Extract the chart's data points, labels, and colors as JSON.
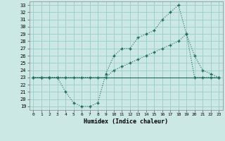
{
  "xlabel": "Humidex (Indice chaleur)",
  "background_color": "#cce8e4",
  "grid_color": "#99cccc",
  "line_color": "#1a6b5a",
  "xlim": [
    -0.5,
    23.5
  ],
  "ylim": [
    18.5,
    33.5
  ],
  "yticks": [
    19,
    20,
    21,
    22,
    23,
    24,
    25,
    26,
    27,
    28,
    29,
    30,
    31,
    32,
    33
  ],
  "xticks": [
    0,
    1,
    2,
    3,
    4,
    5,
    6,
    7,
    8,
    9,
    10,
    11,
    12,
    13,
    14,
    15,
    16,
    17,
    18,
    19,
    20,
    21,
    22,
    23
  ],
  "line1_x": [
    0,
    1,
    2,
    3,
    4,
    5,
    6,
    7,
    8,
    9,
    10,
    11,
    12,
    13,
    14,
    15,
    16,
    17,
    18,
    19,
    20,
    21,
    22,
    23
  ],
  "line1_y": [
    23,
    23,
    23,
    23,
    21,
    19.5,
    19,
    19,
    19.5,
    23.5,
    26,
    27,
    27,
    28.5,
    29,
    29.5,
    31,
    32,
    33,
    29,
    23,
    23,
    23,
    23
  ],
  "line2_x": [
    0,
    1,
    2,
    3,
    4,
    5,
    6,
    7,
    8,
    9,
    10,
    11,
    12,
    13,
    14,
    15,
    16,
    17,
    18,
    19,
    20,
    21,
    22,
    23
  ],
  "line2_y": [
    23,
    23,
    23,
    23,
    23,
    23,
    23,
    23,
    23,
    23,
    24,
    24.5,
    25,
    25.5,
    26,
    26.5,
    27,
    27.5,
    28,
    29,
    26,
    24,
    23.5,
    23
  ],
  "line3_x": [
    0,
    1,
    2,
    3,
    4,
    5,
    6,
    7,
    8,
    9,
    10,
    11,
    12,
    13,
    14,
    15,
    16,
    17,
    18,
    19,
    20,
    21,
    22,
    23
  ],
  "line3_y": [
    23,
    23,
    23,
    23,
    23,
    23,
    23,
    23,
    23,
    23,
    23,
    23,
    23,
    23,
    23,
    23,
    23,
    23,
    23,
    23,
    23,
    23,
    23,
    23
  ]
}
